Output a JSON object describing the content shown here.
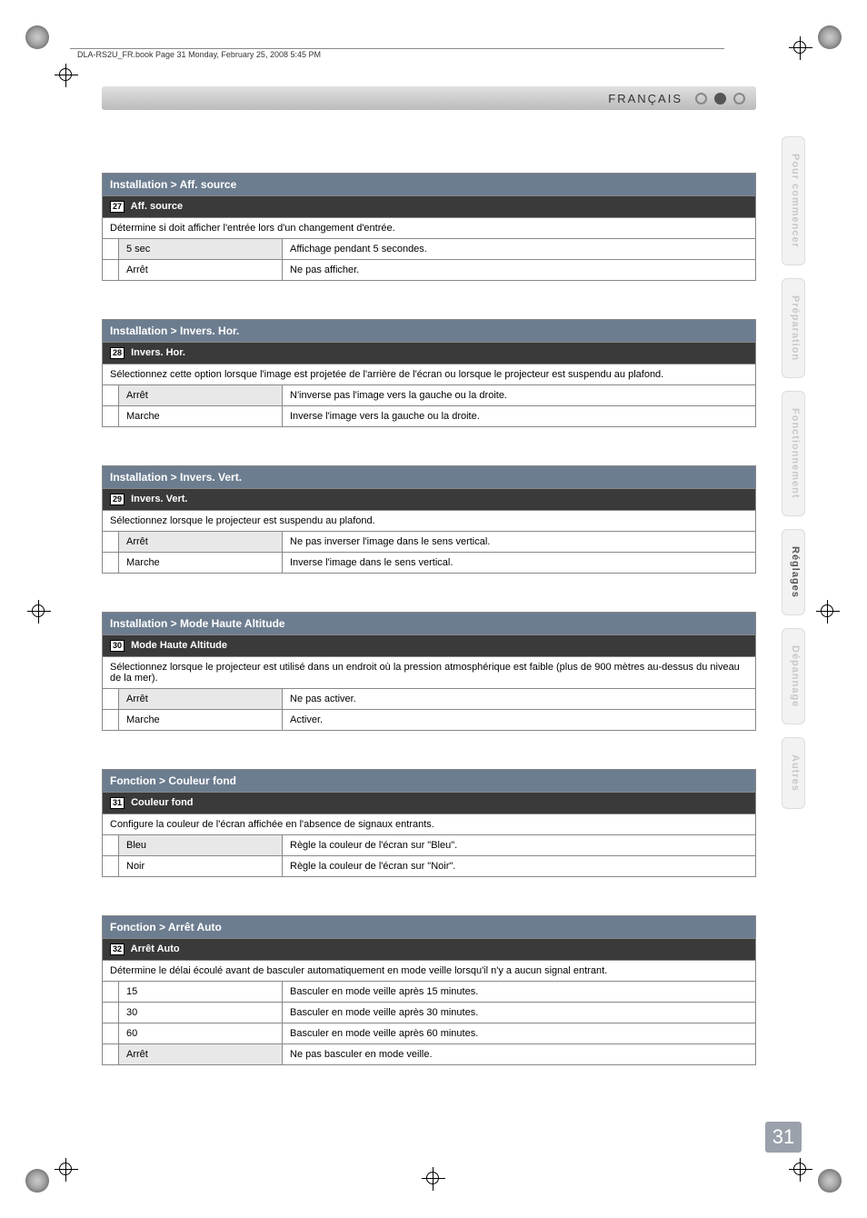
{
  "print_marks": {
    "header_text": "DLA-RS2U_FR.book  Page 31  Monday, February 25, 2008  5:45 PM"
  },
  "language_bar": {
    "label": "FRANÇAIS"
  },
  "side_tabs": [
    {
      "label": "Pour commencer",
      "active": false
    },
    {
      "label": "Préparation",
      "active": false
    },
    {
      "label": "Fonctionnement",
      "active": false
    },
    {
      "label": "Réglages",
      "active": true
    },
    {
      "label": "Dépannage",
      "active": false
    },
    {
      "label": "Autres",
      "active": false
    }
  ],
  "page_number": "31",
  "sections": [
    {
      "header": "Installation > Aff. source",
      "sub_num": "27",
      "sub_label": "Aff. source",
      "desc": "Détermine si doit afficher l'entrée lors d'un changement d'entrée.",
      "options": [
        {
          "k": "5 sec",
          "v": "Affichage pendant 5 secondes.",
          "highlight": true
        },
        {
          "k": "Arrêt",
          "v": "Ne pas afficher."
        }
      ]
    },
    {
      "header": "Installation > Invers. Hor.",
      "sub_num": "28",
      "sub_label": "Invers. Hor.",
      "desc": "Sélectionnez cette option lorsque l'image est projetée de l'arrière de l'écran ou lorsque le projecteur est suspendu au plafond.",
      "options": [
        {
          "k": "Arrêt",
          "v": "N'inverse pas l'image vers la gauche ou la droite.",
          "highlight": true
        },
        {
          "k": "Marche",
          "v": "Inverse l'image vers la gauche ou la droite."
        }
      ]
    },
    {
      "header": "Installation > Invers. Vert.",
      "sub_num": "29",
      "sub_label": "Invers. Vert.",
      "desc": "Sélectionnez lorsque le projecteur est suspendu au plafond.",
      "options": [
        {
          "k": "Arrêt",
          "v": "Ne pas inverser l'image dans le sens vertical.",
          "highlight": true
        },
        {
          "k": "Marche",
          "v": "Inverse l'image dans le sens vertical."
        }
      ]
    },
    {
      "header": "Installation > Mode Haute Altitude",
      "sub_num": "30",
      "sub_label": "Mode Haute Altitude",
      "desc": "Sélectionnez lorsque le projecteur est utilisé dans un endroit où la pression atmosphérique est faible (plus de 900 mètres au-dessus du niveau de la mer).",
      "options": [
        {
          "k": "Arrêt",
          "v": "Ne pas activer.",
          "highlight": true
        },
        {
          "k": "Marche",
          "v": "Activer."
        }
      ]
    },
    {
      "header": "Fonction > Couleur fond",
      "sub_num": "31",
      "sub_label": "Couleur fond",
      "desc": "Configure la couleur de l'écran affichée en l'absence de signaux entrants.",
      "options": [
        {
          "k": "Bleu",
          "v": "Règle la couleur de l'écran sur \"Bleu\".",
          "highlight": true
        },
        {
          "k": "Noir",
          "v": "Règle la couleur de l'écran sur \"Noir\"."
        }
      ]
    },
    {
      "header": "Fonction > Arrêt Auto",
      "sub_num": "32",
      "sub_label": "Arrêt Auto",
      "desc": "Détermine le délai écoulé avant de basculer automatiquement en mode veille lorsqu'il n'y a aucun signal entrant.",
      "options": [
        {
          "k": "15",
          "v": "Basculer en mode veille après 15 minutes."
        },
        {
          "k": "30",
          "v": "Basculer en mode veille après 30 minutes."
        },
        {
          "k": "60",
          "v": "Basculer en mode veille après 60 minutes."
        },
        {
          "k": "Arrêt",
          "v": "Ne pas basculer en mode veille.",
          "highlight": true
        }
      ]
    }
  ]
}
